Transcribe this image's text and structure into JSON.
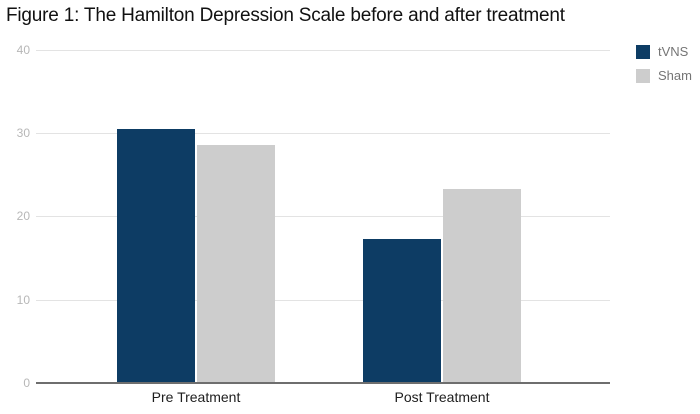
{
  "title": "Figure 1: The Hamilton Depression Scale before and after treatment",
  "legend": {
    "items": [
      {
        "label": "tVNS",
        "color": "#0d3c64"
      },
      {
        "label": "Sham",
        "color": "#cdcdcd"
      }
    ],
    "position": "top-right"
  },
  "colors": {
    "tvns": "#0d3c64",
    "sham": "#cdcdcd",
    "gridline": "#e3e3e3",
    "baseline": "#6e6e6e",
    "tick_label": "#b7b7b7",
    "legend_text": "#757575",
    "category_label": "#1d1d1d",
    "title_text": "#111111"
  },
  "chart_data": {
    "type": "bar",
    "title": "Figure 1: The Hamilton Depression Scale before and after treatment",
    "categories": [
      "Pre Treatment",
      "Post Treatment"
    ],
    "series": [
      {
        "name": "tVNS",
        "color": "#0d3c64",
        "values": [
          30.5,
          17.3
        ]
      },
      {
        "name": "Sham",
        "color": "#cdcdcd",
        "values": [
          28.6,
          23.3
        ]
      }
    ],
    "xlabel": "",
    "ylabel": "",
    "ylim": [
      0,
      40
    ],
    "yticks": [
      0,
      10,
      20,
      30,
      40
    ],
    "grid": true,
    "legend_position": "top-right"
  }
}
